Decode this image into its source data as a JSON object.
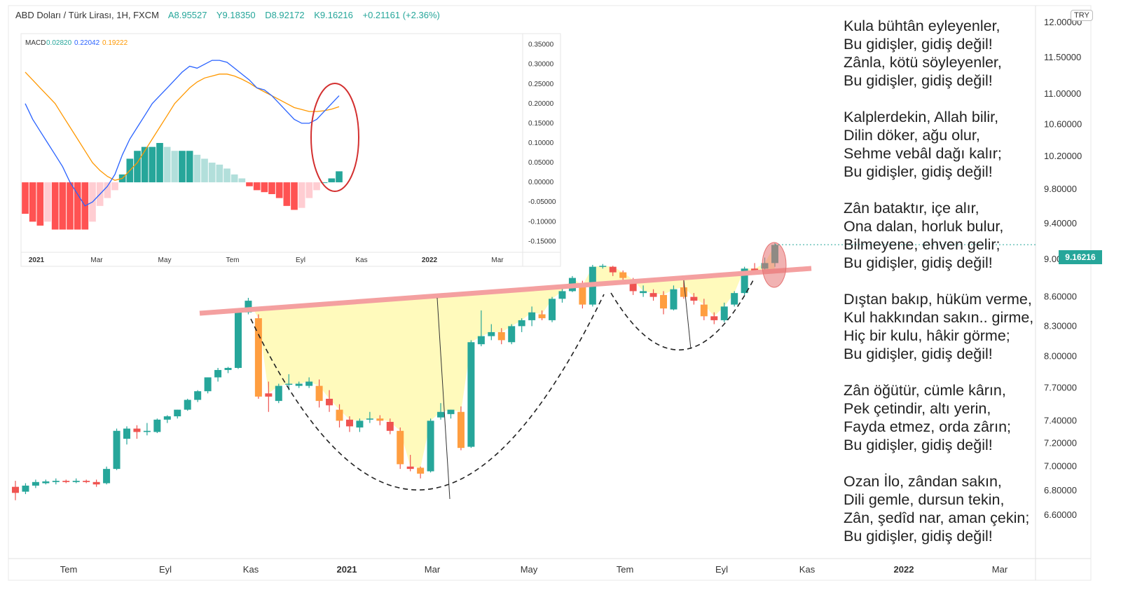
{
  "header": {
    "symbol": "ABD Doları / Türk Lirası, 1H, FXCM",
    "open": "A8.95527",
    "high": "Y9.18350",
    "low": "D8.92172",
    "close": "K9.16216",
    "change": "+0.21161 (+2.36%)"
  },
  "currency_badge": "TRY",
  "last_price_label": "9.16216",
  "colors": {
    "up": "#26a69a",
    "down": "#ef5350",
    "accent_fill": "#fff9b0",
    "neckline": "#f4a0a0"
  },
  "chart_data": [
    {
      "type": "candlestick",
      "x_axis_labels": [
        "Tem",
        "Eyl",
        "Kas",
        "2021",
        "Mar",
        "May",
        "Tem",
        "Eyl",
        "Kas",
        "2022",
        "Mar"
      ],
      "y_ticks": [
        "12.00000",
        "11.50000",
        "11.00000",
        "10.60000",
        "10.20000",
        "9.80000",
        "9.40000",
        "9.00000",
        "8.60000",
        "8.30000",
        "8.00000",
        "7.70000",
        "7.40000",
        "7.20000",
        "7.00000",
        "6.80000",
        "6.60000"
      ],
      "ylim": [
        6.45,
        12.1
      ],
      "scale": "log",
      "last_price": 9.16216,
      "candles": [
        {
          "o": 6.83,
          "h": 6.88,
          "l": 6.72,
          "c": 6.78
        },
        {
          "o": 6.79,
          "h": 6.86,
          "l": 6.77,
          "c": 6.84
        },
        {
          "o": 6.84,
          "h": 6.89,
          "l": 6.82,
          "c": 6.87
        },
        {
          "o": 6.86,
          "h": 6.89,
          "l": 6.85,
          "c": 6.875
        },
        {
          "o": 6.87,
          "h": 6.9,
          "l": 6.85,
          "c": 6.88
        },
        {
          "o": 6.88,
          "h": 6.89,
          "l": 6.86,
          "c": 6.87
        },
        {
          "o": 6.87,
          "h": 6.9,
          "l": 6.86,
          "c": 6.88
        },
        {
          "o": 6.88,
          "h": 6.89,
          "l": 6.86,
          "c": 6.87
        },
        {
          "o": 6.87,
          "h": 6.89,
          "l": 6.83,
          "c": 6.85
        },
        {
          "o": 6.86,
          "h": 7.0,
          "l": 6.85,
          "c": 6.98
        },
        {
          "o": 6.98,
          "h": 7.33,
          "l": 6.97,
          "c": 7.31
        },
        {
          "o": 7.24,
          "h": 7.35,
          "l": 7.19,
          "c": 7.33
        },
        {
          "o": 7.33,
          "h": 7.36,
          "l": 7.24,
          "c": 7.3
        },
        {
          "o": 7.3,
          "h": 7.38,
          "l": 7.27,
          "c": 7.31
        },
        {
          "o": 7.3,
          "h": 7.42,
          "l": 7.29,
          "c": 7.41
        },
        {
          "o": 7.41,
          "h": 7.45,
          "l": 7.38,
          "c": 7.44
        },
        {
          "o": 7.44,
          "h": 7.5,
          "l": 7.42,
          "c": 7.5
        },
        {
          "o": 7.5,
          "h": 7.6,
          "l": 7.49,
          "c": 7.59
        },
        {
          "o": 7.59,
          "h": 7.68,
          "l": 7.57,
          "c": 7.67
        },
        {
          "o": 7.67,
          "h": 7.8,
          "l": 7.65,
          "c": 7.8
        },
        {
          "o": 7.8,
          "h": 7.89,
          "l": 7.76,
          "c": 7.87
        },
        {
          "o": 7.87,
          "h": 7.9,
          "l": 7.84,
          "c": 7.89
        },
        {
          "o": 7.89,
          "h": 8.48,
          "l": 7.88,
          "c": 8.44
        },
        {
          "o": 8.44,
          "h": 8.59,
          "l": 8.42,
          "c": 8.56
        },
        {
          "o": 8.38,
          "h": 8.42,
          "l": 7.6,
          "c": 7.62
        },
        {
          "o": 7.65,
          "h": 7.76,
          "l": 7.48,
          "c": 7.62
        },
        {
          "o": 7.58,
          "h": 7.74,
          "l": 7.56,
          "c": 7.72
        },
        {
          "o": 7.73,
          "h": 7.83,
          "l": 7.68,
          "c": 7.74
        },
        {
          "o": 7.72,
          "h": 7.76,
          "l": 7.7,
          "c": 7.74
        },
        {
          "o": 7.72,
          "h": 7.8,
          "l": 7.7,
          "c": 7.76
        },
        {
          "o": 7.72,
          "h": 7.78,
          "l": 7.52,
          "c": 7.58
        },
        {
          "o": 7.6,
          "h": 7.68,
          "l": 7.48,
          "c": 7.54
        },
        {
          "o": 7.5,
          "h": 7.55,
          "l": 7.34,
          "c": 7.4
        },
        {
          "o": 7.41,
          "h": 7.44,
          "l": 7.3,
          "c": 7.35
        },
        {
          "o": 7.34,
          "h": 7.42,
          "l": 7.3,
          "c": 7.4
        },
        {
          "o": 7.41,
          "h": 7.48,
          "l": 7.38,
          "c": 7.42
        },
        {
          "o": 7.42,
          "h": 7.45,
          "l": 7.36,
          "c": 7.4
        },
        {
          "o": 7.39,
          "h": 7.42,
          "l": 7.28,
          "c": 7.31
        },
        {
          "o": 7.31,
          "h": 7.34,
          "l": 6.98,
          "c": 7.02
        },
        {
          "o": 7.0,
          "h": 7.1,
          "l": 6.96,
          "c": 6.98
        },
        {
          "o": 6.99,
          "h": 7.0,
          "l": 6.9,
          "c": 6.94
        },
        {
          "o": 6.96,
          "h": 7.42,
          "l": 6.95,
          "c": 7.4
        },
        {
          "o": 7.43,
          "h": 7.56,
          "l": 7.41,
          "c": 7.48
        },
        {
          "o": 7.46,
          "h": 7.5,
          "l": 7.42,
          "c": 7.5
        },
        {
          "o": 7.48,
          "h": 7.53,
          "l": 7.14,
          "c": 7.16
        },
        {
          "o": 7.17,
          "h": 8.16,
          "l": 7.16,
          "c": 8.14
        },
        {
          "o": 8.12,
          "h": 8.46,
          "l": 8.1,
          "c": 8.2
        },
        {
          "o": 8.2,
          "h": 8.32,
          "l": 8.16,
          "c": 8.24
        },
        {
          "o": 8.24,
          "h": 8.28,
          "l": 8.12,
          "c": 8.16
        },
        {
          "o": 8.14,
          "h": 8.32,
          "l": 8.12,
          "c": 8.3
        },
        {
          "o": 8.3,
          "h": 8.38,
          "l": 8.24,
          "c": 8.36
        },
        {
          "o": 8.36,
          "h": 8.5,
          "l": 8.3,
          "c": 8.44
        },
        {
          "o": 8.42,
          "h": 8.46,
          "l": 8.36,
          "c": 8.38
        },
        {
          "o": 8.36,
          "h": 8.6,
          "l": 8.34,
          "c": 8.58
        },
        {
          "o": 8.58,
          "h": 8.72,
          "l": 8.54,
          "c": 8.66
        },
        {
          "o": 8.66,
          "h": 8.82,
          "l": 8.65,
          "c": 8.8
        },
        {
          "o": 8.72,
          "h": 8.77,
          "l": 8.48,
          "c": 8.52
        },
        {
          "o": 8.52,
          "h": 8.94,
          "l": 8.5,
          "c": 8.92
        },
        {
          "o": 8.92,
          "h": 8.95,
          "l": 8.9,
          "c": 8.93
        },
        {
          "o": 8.92,
          "h": 8.93,
          "l": 8.82,
          "c": 8.86
        },
        {
          "o": 8.86,
          "h": 8.88,
          "l": 8.78,
          "c": 8.8
        },
        {
          "o": 8.78,
          "h": 8.8,
          "l": 8.62,
          "c": 8.66
        },
        {
          "o": 8.64,
          "h": 8.72,
          "l": 8.6,
          "c": 8.66
        },
        {
          "o": 8.64,
          "h": 8.68,
          "l": 8.56,
          "c": 8.6
        },
        {
          "o": 8.62,
          "h": 8.66,
          "l": 8.42,
          "c": 8.48
        },
        {
          "o": 8.47,
          "h": 8.72,
          "l": 8.46,
          "c": 8.68
        },
        {
          "o": 8.7,
          "h": 8.8,
          "l": 8.58,
          "c": 8.6
        },
        {
          "o": 8.6,
          "h": 8.64,
          "l": 8.52,
          "c": 8.56
        },
        {
          "o": 8.52,
          "h": 8.58,
          "l": 8.36,
          "c": 8.4
        },
        {
          "o": 8.4,
          "h": 8.44,
          "l": 8.32,
          "c": 8.36
        },
        {
          "o": 8.36,
          "h": 8.54,
          "l": 8.34,
          "c": 8.5
        },
        {
          "o": 8.52,
          "h": 8.66,
          "l": 8.5,
          "c": 8.64
        },
        {
          "o": 8.64,
          "h": 8.92,
          "l": 8.62,
          "c": 8.9
        },
        {
          "o": 8.9,
          "h": 8.96,
          "l": 8.86,
          "c": 8.88
        },
        {
          "o": 8.9,
          "h": 9.02,
          "l": 8.86,
          "c": 8.96
        },
        {
          "o": 8.96,
          "h": 9.18,
          "l": 8.92,
          "c": 9.16
        }
      ]
    },
    {
      "type": "macd",
      "legend": "MACD",
      "values_label": [
        "0.02820",
        "0.22042",
        "0.19222"
      ],
      "colors": [
        "#26a69a",
        "#2962ff",
        "#ff9800"
      ],
      "x_axis_labels": [
        "2021",
        "Mar",
        "May",
        "Tem",
        "Eyl",
        "Kas",
        "2022",
        "Mar"
      ],
      "y_ticks": [
        "0.35000",
        "0.30000",
        "0.25000",
        "0.20000",
        "0.15000",
        "0.10000",
        "0.05000",
        "0.00000",
        "-0.05000",
        "-0.10000",
        "-0.15000"
      ],
      "ylim": [
        -0.16,
        0.36
      ],
      "macd": [
        0.2,
        0.16,
        0.13,
        0.1,
        0.07,
        0.04,
        0.0,
        -0.03,
        -0.06,
        -0.05,
        -0.03,
        -0.01,
        0.02,
        0.07,
        0.11,
        0.14,
        0.17,
        0.2,
        0.22,
        0.24,
        0.26,
        0.28,
        0.295,
        0.29,
        0.3,
        0.31,
        0.31,
        0.305,
        0.29,
        0.275,
        0.26,
        0.24,
        0.235,
        0.22,
        0.2,
        0.18,
        0.16,
        0.15,
        0.15,
        0.16,
        0.18,
        0.2,
        0.22
      ],
      "signal": [
        0.28,
        0.26,
        0.24,
        0.22,
        0.2,
        0.17,
        0.14,
        0.11,
        0.08,
        0.05,
        0.03,
        0.015,
        0.005,
        0.01,
        0.03,
        0.05,
        0.08,
        0.11,
        0.14,
        0.17,
        0.2,
        0.22,
        0.24,
        0.255,
        0.265,
        0.27,
        0.275,
        0.275,
        0.27,
        0.262,
        0.252,
        0.24,
        0.23,
        0.22,
        0.21,
        0.2,
        0.19,
        0.185,
        0.18,
        0.18,
        0.182,
        0.186,
        0.192
      ],
      "histogram": [
        -0.08,
        -0.1,
        -0.11,
        -0.1,
        -0.12,
        -0.12,
        -0.12,
        -0.12,
        -0.12,
        -0.1,
        -0.06,
        -0.04,
        -0.02,
        0.02,
        0.06,
        0.08,
        0.09,
        0.09,
        0.1,
        0.09,
        0.08,
        0.08,
        0.08,
        0.07,
        0.06,
        0.05,
        0.045,
        0.035,
        0.02,
        0.01,
        -0.01,
        -0.02,
        -0.025,
        -0.03,
        -0.04,
        -0.06,
        -0.07,
        -0.065,
        -0.04,
        -0.02,
        0.0,
        0.01,
        0.028
      ]
    }
  ],
  "poem": [
    [
      "Kula bühtân eyleyenler,",
      "Bu gidişler, gidiş değil!",
      "Zânla, kötü söyleyenler,",
      "Bu gidişler, gidiş değil!"
    ],
    [
      "Kalplerdekin, Allah bilir,",
      "Dilin döker, ağu olur,",
      "Sehme vebâl dağı kalır;",
      "Bu gidişler, gidiş değil!"
    ],
    [
      "Zân bataktır, içe alır,",
      "Ona dalan, horluk bulur,",
      "Bilmeyene, ehven gelir;",
      "Bu gidişler, gidiş değil!"
    ],
    [
      "Dıştan bakıp, hüküm verme,",
      "Kul hakkından sakın.. girme,",
      "Hiç bir kulu, hâkir görme;",
      "Bu gidişler, gidiş değil!"
    ],
    [
      "Zân öğütür, cümle kârın,",
      "Pek çetindir, altı yerin,",
      "Fayda etmez, orda zârın;",
      "Bu gidişler, gidiş değil!"
    ],
    [
      "Ozan İlo, zândan sakın,",
      "Dili gemle, dursun tekin,",
      "Zân, şedîd nar, aman çekin;",
      "Bu gidişler, gidiş değil!"
    ]
  ]
}
